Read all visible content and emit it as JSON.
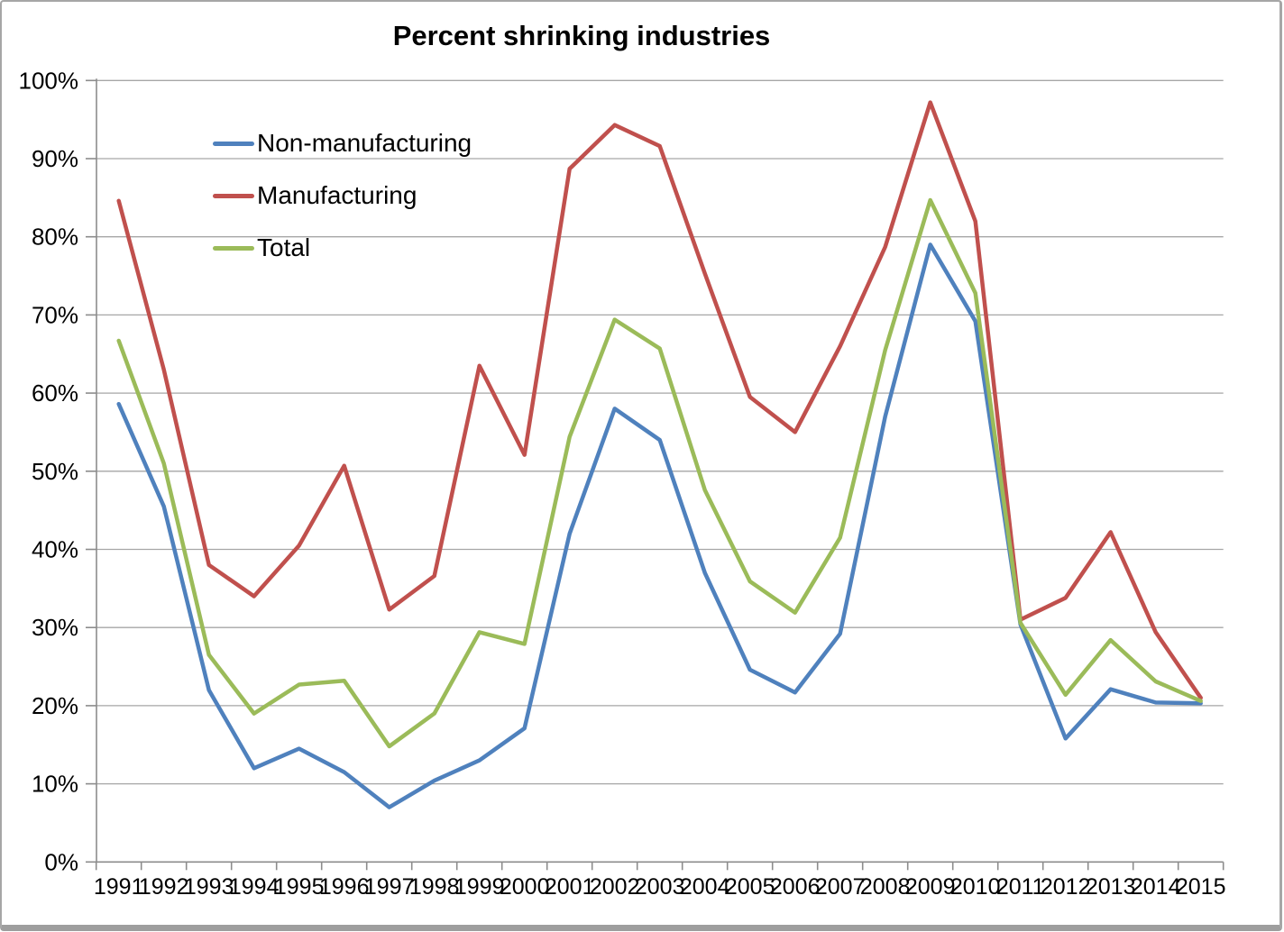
{
  "chart_data": {
    "type": "line",
    "title": "Percent shrinking industries",
    "categories": [
      "1991",
      "1992",
      "1993",
      "1994",
      "1995",
      "1996",
      "1997",
      "1998",
      "1999",
      "2000",
      "2001",
      "2002",
      "2003",
      "2004",
      "2005",
      "2006",
      "2007",
      "2008",
      "2009",
      "2010",
      "2011",
      "2012",
      "2013",
      "2014",
      "2015"
    ],
    "series": [
      {
        "name": "Non-manufacturing",
        "color": "#4F81BD",
        "values": [
          58.6,
          45.5,
          22.0,
          12.0,
          14.5,
          11.5,
          7.0,
          10.4,
          13.0,
          17.1,
          42.0,
          58.0,
          54.0,
          37.0,
          24.6,
          21.7,
          29.2,
          57.0,
          79.0,
          69.2,
          30.4,
          15.8,
          22.1,
          20.4,
          20.3
        ]
      },
      {
        "name": "Manufacturing",
        "color": "#C0504D",
        "values": [
          84.6,
          63.0,
          38.0,
          34.0,
          40.5,
          50.7,
          32.3,
          36.6,
          63.5,
          52.1,
          88.7,
          94.3,
          91.6,
          75.3,
          59.5,
          55.0,
          66.0,
          78.7,
          97.2,
          82.0,
          31.0,
          33.8,
          42.2,
          29.4,
          21.0
        ]
      },
      {
        "name": "Total",
        "color": "#9BBB59",
        "values": [
          66.7,
          51.0,
          26.5,
          19.0,
          22.7,
          23.2,
          14.8,
          19.0,
          29.4,
          27.9,
          54.4,
          69.4,
          65.7,
          47.6,
          35.9,
          31.9,
          41.5,
          65.5,
          84.7,
          72.8,
          30.6,
          21.4,
          28.4,
          23.1,
          20.6
        ]
      }
    ],
    "ylim": [
      0,
      100
    ],
    "ytick_step": 10,
    "ytick_labels": [
      "0%",
      "10%",
      "20%",
      "30%",
      "40%",
      "50%",
      "60%",
      "70%",
      "80%",
      "90%",
      "100%"
    ],
    "grid": true,
    "legend_position": "upper-left-inside",
    "colors": {
      "gridline": "#a6a6a6",
      "axis": "#8c8c8c",
      "text": "#000000"
    }
  }
}
